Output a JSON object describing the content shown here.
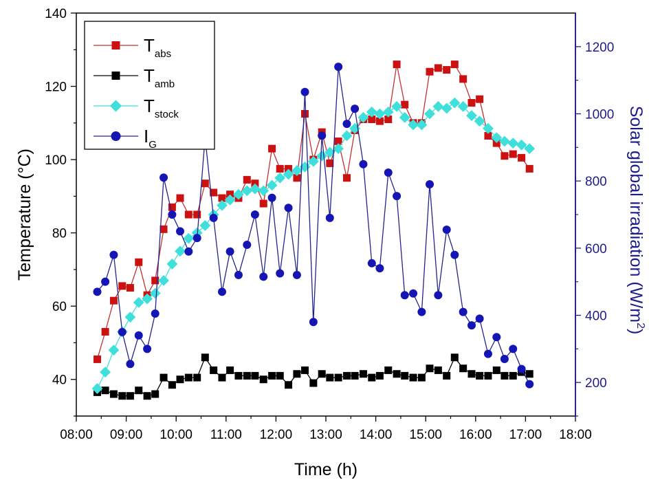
{
  "chart_data": {
    "type": "line",
    "xlabel": "Time (h)",
    "ylabel_left": "Temperature (°C)",
    "ylabel_right_main": "Solar global irradiation (W/m",
    "ylabel_right_sup": "2",
    "ylabel_right_close": ")",
    "xlim": [
      8,
      18
    ],
    "ylim_left": [
      30,
      140
    ],
    "ylim_right": [
      100,
      1300
    ],
    "x_ticks": [
      8,
      9,
      10,
      11,
      12,
      13,
      14,
      15,
      16,
      17,
      18
    ],
    "x_tick_labels": [
      "08:00",
      "09:00",
      "10:00",
      "11:00",
      "12:00",
      "13:00",
      "14:00",
      "15:00",
      "16:00",
      "17:00",
      "18:00"
    ],
    "y_left_ticks": [
      40,
      60,
      80,
      100,
      120,
      140
    ],
    "y_right_ticks": [
      200,
      400,
      600,
      800,
      1000,
      1200
    ],
    "legend_position": "top-left",
    "series": [
      {
        "name": "T",
        "sub": "abs",
        "axis": "left",
        "color": "#cc1111",
        "line_color": "#c23030",
        "marker": "square",
        "x": [
          8.42,
          8.58,
          8.75,
          8.92,
          9.08,
          9.25,
          9.42,
          9.58,
          9.75,
          9.92,
          10.08,
          10.25,
          10.42,
          10.58,
          10.75,
          10.92,
          11.08,
          11.25,
          11.42,
          11.58,
          11.75,
          11.92,
          12.08,
          12.25,
          12.42,
          12.58,
          12.75,
          12.92,
          13.08,
          13.25,
          13.42,
          13.58,
          13.75,
          13.92,
          14.08,
          14.25,
          14.42,
          14.58,
          14.75,
          14.92,
          15.08,
          15.25,
          15.42,
          15.58,
          15.75,
          15.92,
          16.08,
          16.25,
          16.42,
          16.58,
          16.75,
          16.92,
          17.08
        ],
        "values": [
          45.5,
          53,
          61.5,
          65.5,
          65,
          72,
          63,
          67,
          81,
          87,
          89.5,
          85,
          85,
          93.5,
          91,
          89.5,
          90.5,
          89.5,
          94.5,
          93.5,
          88,
          103,
          97.5,
          97.5,
          95,
          112.5,
          100,
          107.5,
          99,
          105,
          95,
          108,
          111,
          111,
          110.5,
          111,
          126,
          115,
          110,
          110,
          124,
          125,
          124.5,
          126,
          122,
          115.5,
          116.5,
          106.5,
          104.5,
          101,
          101.5,
          100.5,
          97.5
        ]
      },
      {
        "name": "T",
        "sub": "amb",
        "axis": "left",
        "color": "#000000",
        "line_color": "#000000",
        "marker": "square",
        "x": [
          8.42,
          8.58,
          8.75,
          8.92,
          9.08,
          9.25,
          9.42,
          9.58,
          9.75,
          9.92,
          10.08,
          10.25,
          10.42,
          10.58,
          10.75,
          10.92,
          11.08,
          11.25,
          11.42,
          11.58,
          11.75,
          11.92,
          12.08,
          12.25,
          12.42,
          12.58,
          12.75,
          12.92,
          13.08,
          13.25,
          13.42,
          13.58,
          13.75,
          13.92,
          14.08,
          14.25,
          14.42,
          14.58,
          14.75,
          14.92,
          15.08,
          15.25,
          15.42,
          15.58,
          15.75,
          15.92,
          16.08,
          16.25,
          16.42,
          16.58,
          16.75,
          16.92,
          17.08
        ],
        "values": [
          36.5,
          37,
          36,
          35.5,
          35.5,
          37,
          35.5,
          36,
          40.5,
          38.5,
          40,
          40.5,
          40.5,
          46,
          42.5,
          40.5,
          42.5,
          41,
          41,
          41,
          40,
          41,
          41,
          38.5,
          41.5,
          42.5,
          39,
          41.5,
          40.5,
          40.5,
          41,
          41,
          41.5,
          40.5,
          41,
          42.5,
          41.5,
          41,
          40.5,
          40.5,
          43,
          42.5,
          41,
          46,
          43,
          41.5,
          41,
          41,
          42.5,
          41,
          41,
          42,
          41.5
        ]
      },
      {
        "name": "T",
        "sub": "stock",
        "axis": "left",
        "color": "#3fe0dc",
        "line_color": "#3fe0dc",
        "marker": "diamond",
        "x": [
          8.42,
          8.58,
          8.75,
          8.92,
          9.08,
          9.25,
          9.42,
          9.58,
          9.75,
          9.92,
          10.08,
          10.25,
          10.42,
          10.58,
          10.75,
          10.92,
          11.08,
          11.25,
          11.42,
          11.58,
          11.75,
          11.92,
          12.08,
          12.25,
          12.42,
          12.58,
          12.75,
          12.92,
          13.08,
          13.25,
          13.42,
          13.58,
          13.75,
          13.92,
          14.08,
          14.25,
          14.42,
          14.58,
          14.75,
          14.92,
          15.08,
          15.25,
          15.42,
          15.58,
          15.75,
          15.92,
          16.08,
          16.25,
          16.42,
          16.58,
          16.75,
          16.92,
          17.08
        ],
        "values": [
          37.5,
          42,
          48,
          53,
          57,
          61,
          62,
          63.5,
          67,
          71.5,
          75,
          78.5,
          80,
          82,
          85,
          87.5,
          89,
          90.5,
          91.5,
          92,
          91.5,
          93,
          95,
          96,
          97,
          98,
          99.5,
          101,
          102,
          103,
          106.5,
          108.5,
          111.5,
          113,
          112.5,
          113,
          114.5,
          111.5,
          109.5,
          109.5,
          112.5,
          114.5,
          114,
          115.5,
          114.5,
          112,
          110.5,
          108.5,
          106,
          105,
          104.5,
          104,
          103
        ]
      },
      {
        "name": "I",
        "sub": "G",
        "axis": "right",
        "color": "#1515b5",
        "line_color": "#23238c",
        "marker": "circle",
        "x": [
          8.42,
          8.58,
          8.75,
          8.92,
          9.08,
          9.25,
          9.42,
          9.58,
          9.75,
          9.92,
          10.08,
          10.25,
          10.42,
          10.58,
          10.75,
          10.92,
          11.08,
          11.25,
          11.42,
          11.58,
          11.75,
          11.92,
          12.08,
          12.25,
          12.42,
          12.58,
          12.75,
          12.92,
          13.08,
          13.25,
          13.42,
          13.58,
          13.75,
          13.92,
          14.08,
          14.25,
          14.42,
          14.58,
          14.75,
          14.92,
          15.08,
          15.25,
          15.42,
          15.58,
          15.75,
          15.92,
          16.08,
          16.25,
          16.42,
          16.58,
          16.75,
          16.92,
          17.08
        ],
        "values": [
          470,
          500,
          580,
          350,
          255,
          340,
          300,
          405,
          810,
          700,
          650,
          590,
          630,
          930,
          690,
          470,
          590,
          520,
          610,
          700,
          515,
          750,
          525,
          720,
          520,
          1065,
          380,
          935,
          690,
          1140,
          970,
          1015,
          850,
          555,
          540,
          825,
          755,
          460,
          465,
          410,
          790,
          460,
          655,
          580,
          410,
          370,
          390,
          285,
          335,
          270,
          300,
          240,
          195
        ]
      }
    ]
  }
}
